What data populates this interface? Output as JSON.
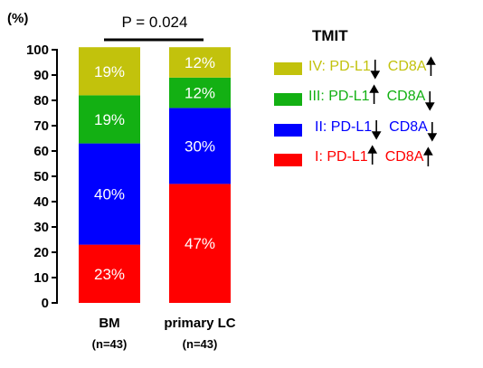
{
  "chart_data": {
    "type": "bar",
    "stacked": true,
    "ylabel": "(%)",
    "ylim": [
      0,
      100
    ],
    "yticks": [
      "0",
      "10",
      "20",
      "30",
      "40",
      "50",
      "60",
      "70",
      "80",
      "90",
      "100"
    ],
    "categories": [
      "BM",
      "primary LC"
    ],
    "category_n": [
      "(n=43)",
      "(n=43)"
    ],
    "annotation": "P = 0.024",
    "legend_title": "TMIT",
    "legend_position": "right",
    "series": [
      {
        "name": "I: PD-L1↑ CD8A↑",
        "label_prefix": "I: PD-L1",
        "label_mid": "CD8A",
        "pd_dir": "up",
        "cd_dir": "up",
        "color": "#ff0000",
        "values": [
          23,
          47
        ],
        "labels": [
          "23%",
          "47%"
        ]
      },
      {
        "name": "II: PD-L1↓ CD8A↓",
        "label_prefix": "II: PD-L1",
        "label_mid": "CD8A",
        "pd_dir": "down",
        "cd_dir": "down",
        "color": "#0000ff",
        "values": [
          40,
          30
        ],
        "labels": [
          "40%",
          "30%"
        ]
      },
      {
        "name": "III: PD-L1↑ CD8A↓",
        "label_prefix": "III: PD-L1",
        "label_mid": "CD8A",
        "pd_dir": "up",
        "cd_dir": "down",
        "color": "#13b013",
        "values": [
          19,
          12
        ],
        "labels": [
          "19%",
          "12%"
        ]
      },
      {
        "name": "IV: PD-L1↓ CD8A↑",
        "label_prefix": "IV: PD-L1",
        "label_mid": "CD8A",
        "pd_dir": "down",
        "cd_dir": "up",
        "color": "#c2c20c",
        "values": [
          19,
          12
        ],
        "labels": [
          "19%",
          "12%"
        ]
      }
    ]
  }
}
